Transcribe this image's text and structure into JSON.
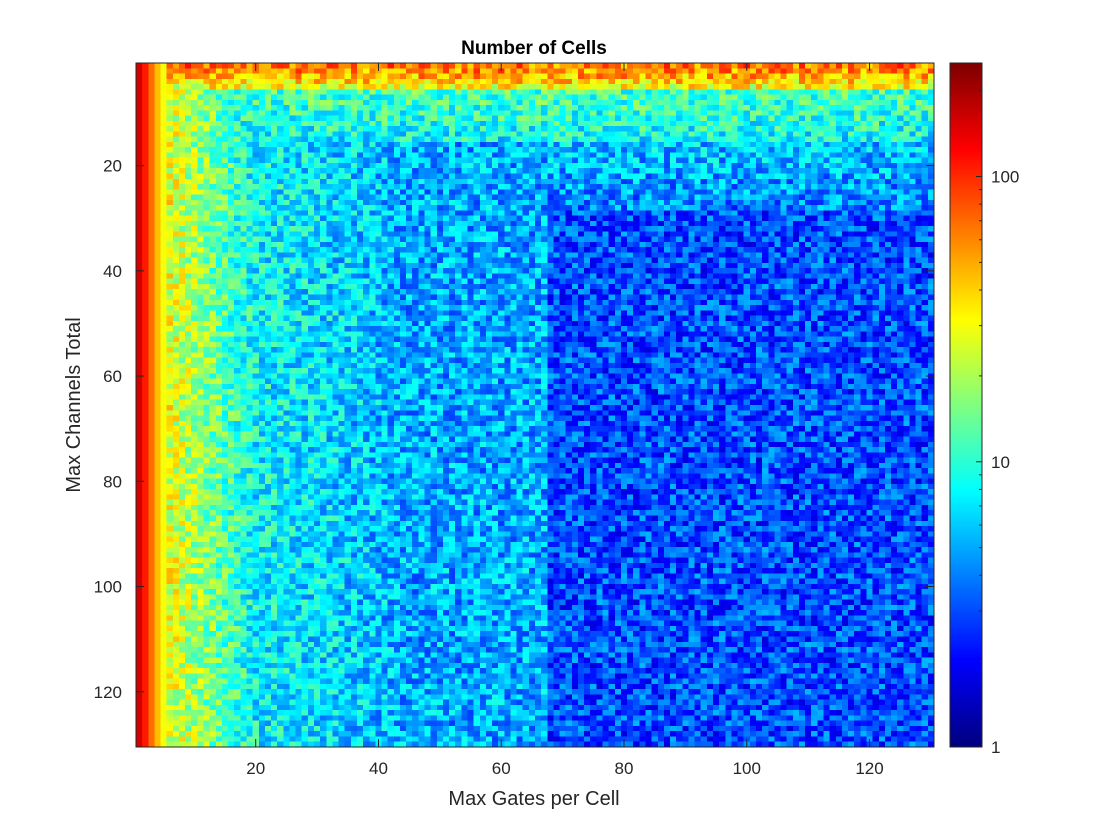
{
  "chart_data": {
    "type": "heatmap",
    "title": "Number of Cells",
    "xlabel": "Max Gates per Cell",
    "ylabel": "Max Channels Total",
    "x_range": [
      1,
      130
    ],
    "y_range": [
      1,
      130
    ],
    "y_axis_direction": "reversed",
    "x_ticks": [
      20,
      40,
      60,
      80,
      100,
      120
    ],
    "y_ticks": [
      20,
      40,
      60,
      80,
      100,
      120
    ],
    "colormap": "jet",
    "color_scale": "log",
    "color_range": [
      1,
      250
    ],
    "colorbar_ticks": [
      1,
      10,
      100
    ],
    "colorbar_location": "right",
    "grid": false,
    "approximate_structure": {
      "x1_column_value": 160,
      "x2_column_value": 110,
      "x3_column_value": 70,
      "x4_column_value": 45,
      "x5_column_value": 30,
      "y1_row_value": 65,
      "y5_row_value": 30,
      "x20_to_40_typical": 8,
      "x45_to_65_typical": 5,
      "x70_to_130_y30_to_130_typical": 3,
      "x70_to_130_y20_typical": 4
    }
  }
}
